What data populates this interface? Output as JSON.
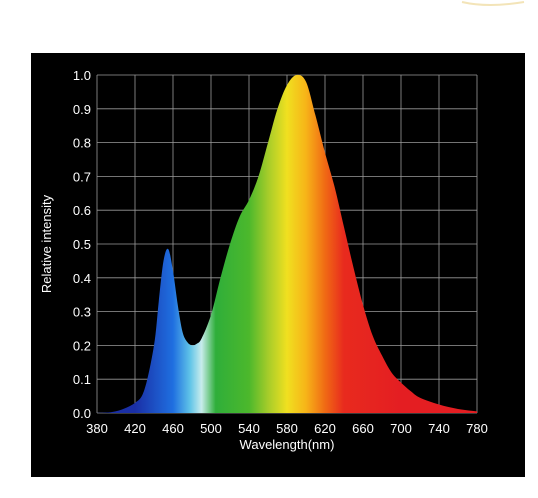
{
  "chart_data": {
    "type": "area",
    "title": "",
    "xlabel": "Wavelength(nm)",
    "ylabel": "Relative intensity",
    "xlim": [
      380,
      780
    ],
    "ylim": [
      0.0,
      1.0
    ],
    "grid": true,
    "x_ticks": [
      380,
      420,
      460,
      500,
      540,
      580,
      620,
      660,
      700,
      740,
      780
    ],
    "x_tick_labels": [
      "380",
      "420",
      "460",
      "500",
      "540",
      "580",
      "620",
      "660",
      "700",
      "740",
      "780"
    ],
    "y_ticks": [
      0.0,
      0.1,
      0.2,
      0.3,
      0.4,
      0.5,
      0.6,
      0.7,
      0.8,
      0.9,
      1.0
    ],
    "y_tick_labels": [
      "0.0",
      "0.1",
      "0.2",
      "0.3",
      "0.4",
      "0.5",
      "0.6",
      "0.7",
      "0.8",
      "0.9",
      "1.0"
    ],
    "x": [
      380,
      400,
      420,
      430,
      440,
      445,
      450,
      455,
      460,
      465,
      470,
      475,
      480,
      485,
      490,
      500,
      510,
      520,
      530,
      540,
      550,
      560,
      570,
      580,
      590,
      600,
      610,
      620,
      630,
      640,
      650,
      660,
      670,
      680,
      690,
      700,
      710,
      720,
      740,
      760,
      780
    ],
    "y": [
      0.0,
      0.005,
      0.03,
      0.07,
      0.2,
      0.33,
      0.45,
      0.485,
      0.42,
      0.32,
      0.24,
      0.21,
      0.2,
      0.205,
      0.22,
      0.29,
      0.4,
      0.5,
      0.58,
      0.63,
      0.7,
      0.8,
      0.9,
      0.97,
      1.0,
      0.98,
      0.88,
      0.77,
      0.67,
      0.55,
      0.43,
      0.32,
      0.23,
      0.17,
      0.12,
      0.09,
      0.065,
      0.045,
      0.025,
      0.012,
      0.005
    ],
    "fill": "wavelength-spectrum gradient",
    "colors": {
      "background": "#000000",
      "grid": "#9a9a9a",
      "text": "#ffffff",
      "gradient_stops": [
        {
          "wavelength": 420,
          "color": "#1a2fa6"
        },
        {
          "wavelength": 460,
          "color": "#1f6fe0"
        },
        {
          "wavelength": 478,
          "color": "#60c4e8"
        },
        {
          "wavelength": 490,
          "color": "#c8ecec"
        },
        {
          "wavelength": 505,
          "color": "#2fae3a"
        },
        {
          "wavelength": 540,
          "color": "#4cb82c"
        },
        {
          "wavelength": 560,
          "color": "#a5cc2a"
        },
        {
          "wavelength": 580,
          "color": "#f0e020"
        },
        {
          "wavelength": 600,
          "color": "#f7b418"
        },
        {
          "wavelength": 620,
          "color": "#f06a14"
        },
        {
          "wavelength": 640,
          "color": "#e82a1e"
        },
        {
          "wavelength": 700,
          "color": "#e41e22"
        }
      ]
    }
  }
}
